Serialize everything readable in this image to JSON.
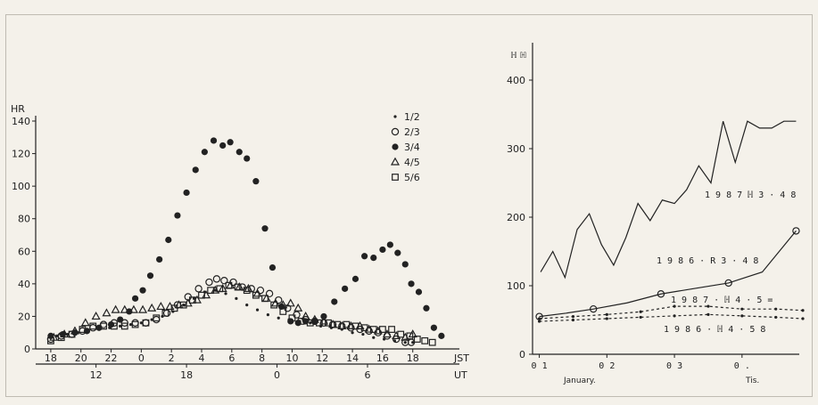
{
  "chart_data": [
    {
      "type": "scatter",
      "ylabel": "HR",
      "ylim": [
        0,
        140
      ],
      "yticks": [
        "0",
        "20",
        "40",
        "60",
        "80",
        "100",
        "120",
        "140"
      ],
      "xlim": [
        17,
        19.5
      ],
      "xticks_top_values": [
        18,
        20,
        22,
        24,
        26,
        28,
        30,
        32,
        34,
        36,
        38,
        40,
        42
      ],
      "xticks_top": [
        "18",
        "20",
        "22",
        "0",
        "2",
        "4",
        "6",
        "8",
        "10",
        "12",
        "14",
        "16",
        "18"
      ],
      "x_unit_top": "JST",
      "xticks_bottom_values": [
        21,
        27,
        33,
        39
      ],
      "xticks_bottom": [
        "12",
        "18",
        "0",
        "6"
      ],
      "x_unit_bottom": "UT",
      "legend_position": "top-right",
      "series": [
        {
          "name": "1/2",
          "marker": "small-dot",
          "points": [
            [
              17.9,
              8
            ],
            [
              18.4,
              8
            ],
            [
              19.1,
              9
            ],
            [
              19.8,
              10
            ],
            [
              20.5,
              11
            ],
            [
              21.2,
              12
            ],
            [
              21.9,
              13
            ],
            [
              22.6,
              14
            ],
            [
              23.3,
              15
            ],
            [
              24.0,
              16
            ],
            [
              24.7,
              18
            ],
            [
              25.4,
              20
            ],
            [
              26.1,
              23
            ],
            [
              26.8,
              27
            ],
            [
              27.5,
              31
            ],
            [
              28.2,
              35
            ],
            [
              28.9,
              36
            ],
            [
              29.6,
              34
            ],
            [
              30.3,
              31
            ],
            [
              31.0,
              27
            ],
            [
              31.7,
              24
            ],
            [
              32.4,
              21
            ],
            [
              33.1,
              19
            ],
            [
              33.8,
              18
            ],
            [
              34.5,
              17
            ],
            [
              35.2,
              16
            ],
            [
              35.9,
              14
            ],
            [
              36.6,
              13
            ],
            [
              37.3,
              12
            ],
            [
              38.0,
              10
            ],
            [
              38.7,
              9
            ],
            [
              39.4,
              7
            ],
            [
              40.1,
              6
            ],
            [
              40.8,
              5
            ],
            [
              41.5,
              4
            ],
            [
              42.0,
              4
            ]
          ]
        },
        {
          "name": "2/3",
          "marker": "open-circle",
          "points": [
            [
              18.0,
              6
            ],
            [
              18.7,
              8
            ],
            [
              19.4,
              9
            ],
            [
              20.1,
              11
            ],
            [
              20.8,
              13
            ],
            [
              21.5,
              15
            ],
            [
              22.2,
              16
            ],
            [
              22.9,
              16
            ],
            [
              23.6,
              16
            ],
            [
              24.3,
              16
            ],
            [
              25.0,
              18
            ],
            [
              25.7,
              22
            ],
            [
              26.4,
              27
            ],
            [
              27.1,
              32
            ],
            [
              27.8,
              37
            ],
            [
              28.5,
              41
            ],
            [
              29.0,
              43
            ],
            [
              29.5,
              42
            ],
            [
              30.1,
              41
            ],
            [
              30.7,
              38
            ],
            [
              31.3,
              37
            ],
            [
              31.9,
              36
            ],
            [
              32.5,
              34
            ],
            [
              33.1,
              30
            ],
            [
              33.7,
              25
            ],
            [
              34.3,
              21
            ],
            [
              34.9,
              18
            ],
            [
              35.5,
              17
            ],
            [
              36.1,
              16
            ],
            [
              36.7,
              15
            ],
            [
              37.3,
              14
            ],
            [
              37.9,
              13
            ],
            [
              38.5,
              12
            ],
            [
              39.1,
              11
            ],
            [
              39.7,
              10
            ],
            [
              40.3,
              8
            ],
            [
              40.9,
              6
            ],
            [
              41.5,
              4
            ],
            [
              41.9,
              4
            ]
          ]
        },
        {
          "name": "3/4",
          "marker": "filled-circle",
          "points": [
            [
              18.0,
              8
            ],
            [
              18.8,
              9
            ],
            [
              19.6,
              10
            ],
            [
              20.4,
              11
            ],
            [
              21.2,
              13
            ],
            [
              22.0,
              15
            ],
            [
              22.6,
              18
            ],
            [
              23.2,
              23
            ],
            [
              23.6,
              31
            ],
            [
              24.1,
              36
            ],
            [
              24.6,
              45
            ],
            [
              25.2,
              55
            ],
            [
              25.8,
              67
            ],
            [
              26.4,
              82
            ],
            [
              27.0,
              96
            ],
            [
              27.6,
              110
            ],
            [
              28.2,
              121
            ],
            [
              28.8,
              128
            ],
            [
              29.4,
              125
            ],
            [
              29.9,
              127
            ],
            [
              30.5,
              121
            ],
            [
              31.0,
              117
            ],
            [
              31.6,
              103
            ],
            [
              32.2,
              74
            ],
            [
              32.7,
              50
            ],
            [
              33.3,
              26
            ],
            [
              33.9,
              17
            ],
            [
              34.4,
              16
            ],
            [
              34.9,
              17
            ],
            [
              35.5,
              17
            ],
            [
              36.1,
              20
            ],
            [
              36.8,
              29
            ],
            [
              37.5,
              37
            ],
            [
              38.2,
              43
            ],
            [
              38.8,
              57
            ],
            [
              39.4,
              56
            ],
            [
              40.0,
              61
            ],
            [
              40.5,
              64
            ],
            [
              41.0,
              59
            ],
            [
              41.5,
              52
            ],
            [
              41.9,
              40
            ],
            [
              42.4,
              35
            ],
            [
              42.9,
              25
            ],
            [
              43.4,
              13
            ],
            [
              43.9,
              8
            ]
          ]
        },
        {
          "name": "4/5",
          "marker": "open-triangle",
          "points": [
            [
              18.2,
              7
            ],
            [
              18.9,
              9
            ],
            [
              19.6,
              11
            ],
            [
              20.3,
              16
            ],
            [
              21.0,
              20
            ],
            [
              21.7,
              22
            ],
            [
              22.3,
              24
            ],
            [
              22.9,
              24
            ],
            [
              23.5,
              24
            ],
            [
              24.1,
              24
            ],
            [
              24.7,
              25
            ],
            [
              25.3,
              26
            ],
            [
              25.9,
              26
            ],
            [
              26.5,
              27
            ],
            [
              27.1,
              28
            ],
            [
              27.7,
              30
            ],
            [
              28.3,
              33
            ],
            [
              28.9,
              36
            ],
            [
              29.4,
              37
            ],
            [
              29.9,
              39
            ],
            [
              30.5,
              38
            ],
            [
              31.1,
              37
            ],
            [
              31.7,
              34
            ],
            [
              32.3,
              31
            ],
            [
              32.9,
              28
            ],
            [
              33.4,
              27
            ],
            [
              33.9,
              28
            ],
            [
              34.4,
              25
            ],
            [
              34.9,
              20
            ],
            [
              35.5,
              18
            ],
            [
              36.1,
              17
            ],
            [
              36.7,
              15
            ],
            [
              37.3,
              14
            ],
            [
              37.9,
              14
            ],
            [
              38.5,
              14
            ],
            [
              39.1,
              12
            ],
            [
              39.7,
              11
            ],
            [
              40.3,
              9
            ],
            [
              40.9,
              8
            ],
            [
              41.5,
              7
            ],
            [
              42.0,
              9
            ]
          ]
        },
        {
          "name": "5/6",
          "marker": "open-square",
          "points": [
            [
              18.0,
              5
            ],
            [
              18.7,
              7
            ],
            [
              19.4,
              9
            ],
            [
              20.1,
              12
            ],
            [
              20.8,
              14
            ],
            [
              21.5,
              14
            ],
            [
              22.2,
              14
            ],
            [
              22.9,
              14
            ],
            [
              23.6,
              15
            ],
            [
              24.3,
              16
            ],
            [
              25.0,
              19
            ],
            [
              25.6,
              22
            ],
            [
              26.2,
              25
            ],
            [
              26.8,
              27
            ],
            [
              27.4,
              30
            ],
            [
              28.0,
              33
            ],
            [
              28.6,
              36
            ],
            [
              29.2,
              37
            ],
            [
              29.8,
              39
            ],
            [
              30.4,
              38
            ],
            [
              31.0,
              36
            ],
            [
              31.6,
              33
            ],
            [
              32.2,
              31
            ],
            [
              32.8,
              27
            ],
            [
              33.4,
              23
            ],
            [
              34.0,
              19
            ],
            [
              34.6,
              17
            ],
            [
              35.2,
              16
            ],
            [
              35.8,
              16
            ],
            [
              36.4,
              16
            ],
            [
              37.0,
              15
            ],
            [
              37.6,
              15
            ],
            [
              38.2,
              14
            ],
            [
              38.8,
              13
            ],
            [
              39.4,
              12
            ],
            [
              40.0,
              12
            ],
            [
              40.6,
              12
            ],
            [
              41.2,
              9
            ],
            [
              41.8,
              8
            ],
            [
              42.3,
              6
            ],
            [
              42.8,
              5
            ],
            [
              43.3,
              4
            ]
          ]
        }
      ]
    },
    {
      "type": "line",
      "ylim": [
        0,
        400
      ],
      "yticks": [
        "0",
        "100",
        "200",
        "300",
        "400"
      ],
      "ylabel": "ℍ ℍ",
      "xlim": [
        0,
        4
      ],
      "xticks_values": [
        0.1,
        1.1,
        2.1,
        3.1
      ],
      "xticks": [
        "0 1",
        "0 2",
        "0 3",
        "0 ."
      ],
      "xlabel_left": "January.",
      "xlabel_right": "Tis.",
      "series": [
        {
          "name": "1 9 8 7   ℍ 3 · 4 8",
          "style": "solid",
          "marker": "none",
          "x": [
            0.12,
            0.3,
            0.48,
            0.66,
            0.84,
            1.02,
            1.2,
            1.38,
            1.56,
            1.74,
            1.92,
            2.1,
            2.28,
            2.46,
            2.64,
            2.82,
            3.0,
            3.18,
            3.36,
            3.54,
            3.72,
            3.9
          ],
          "y": [
            120,
            150,
            112,
            182,
            205,
            160,
            130,
            170,
            220,
            195,
            225,
            220,
            240,
            275,
            250,
            340,
            280,
            340,
            330,
            330,
            340,
            340
          ]
        },
        {
          "name": "1 9 8 6   · R 3 · 4 8",
          "style": "solid",
          "marker": "open-circle",
          "x": [
            0.1,
            0.5,
            0.9,
            1.4,
            1.9,
            2.4,
            2.9,
            3.4,
            3.9
          ],
          "y": [
            55,
            60,
            66,
            75,
            88,
            96,
            104,
            120,
            180
          ]
        },
        {
          "name": "1 9 8 7   · ℍ 4 · 5 =",
          "style": "dashed",
          "marker": "dot",
          "x": [
            0.1,
            0.6,
            1.1,
            1.6,
            2.1,
            2.6,
            3.1,
            3.6,
            4.0
          ],
          "y": [
            52,
            55,
            58,
            62,
            70,
            70,
            66,
            66,
            64
          ]
        },
        {
          "name": "1 9 8 6 · ℍ 4 · 5 8",
          "style": "dashed",
          "marker": "dot",
          "x": [
            0.1,
            0.6,
            1.1,
            1.6,
            2.1,
            2.6,
            3.1,
            3.6,
            4.0
          ],
          "y": [
            48,
            50,
            52,
            54,
            56,
            58,
            56,
            54,
            52
          ]
        }
      ]
    }
  ]
}
